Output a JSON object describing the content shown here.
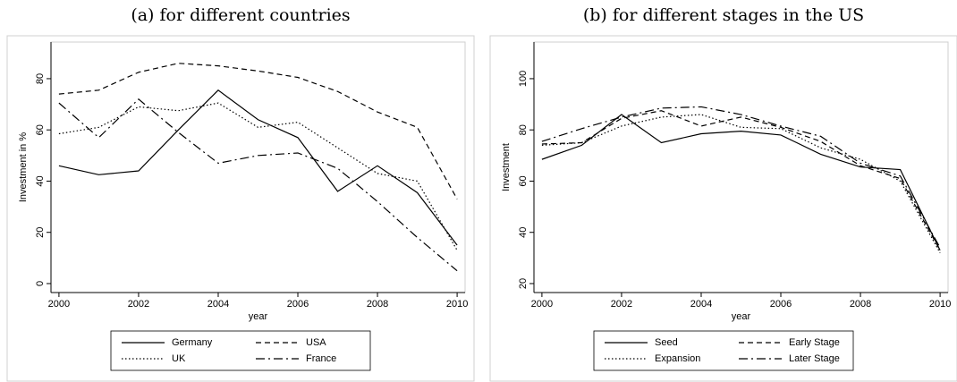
{
  "chart_data": [
    {
      "type": "line",
      "title": "(a) for different countries",
      "x_label": "year",
      "y_label": "Investment in %",
      "x": [
        2000,
        2001,
        2002,
        2003,
        2004,
        2005,
        2006,
        2007,
        2008,
        2009,
        2010
      ],
      "xlim": [
        1999.8,
        2010.2
      ],
      "xticks": [
        2000,
        2002,
        2004,
        2006,
        2008,
        2010
      ],
      "ylim": [
        -3.5,
        94.3
      ],
      "yticks": [
        0,
        20,
        40,
        60,
        80
      ],
      "legend": "bottom",
      "grid": false,
      "series": [
        {
          "name": "Germany",
          "color": "#000000",
          "dash": "solid",
          "values": [
            46,
            42.5,
            44,
            60,
            75.5,
            64,
            57,
            36,
            46,
            35.5,
            15
          ]
        },
        {
          "name": "USA",
          "color": "#000000",
          "dash": "dashed",
          "values": [
            74,
            75.5,
            82.5,
            86,
            85,
            83,
            80.5,
            75,
            67,
            61,
            33
          ]
        },
        {
          "name": "UK",
          "color": "#000000",
          "dash": "dotted",
          "values": [
            58.5,
            61,
            69,
            67.5,
            70.5,
            61,
            63,
            53,
            43,
            40,
            13
          ]
        },
        {
          "name": "France",
          "color": "#000000",
          "dash": "dashdot",
          "values": [
            70.5,
            57,
            72,
            59,
            47,
            50,
            51,
            45,
            32,
            18,
            5
          ]
        }
      ]
    },
    {
      "type": "line",
      "title": "(b) for different stages in the US",
      "x_label": "year",
      "y_label": "Investment",
      "x": [
        2000,
        2001,
        2002,
        2003,
        2004,
        2005,
        2006,
        2007,
        2008,
        2009,
        2010
      ],
      "xlim": [
        1999.8,
        2010.2
      ],
      "xticks": [
        2000,
        2002,
        2004,
        2006,
        2008,
        2010
      ],
      "ylim": [
        16.5,
        114.3
      ],
      "yticks": [
        20,
        40,
        60,
        80,
        100
      ],
      "legend": "bottom",
      "grid": false,
      "series": [
        {
          "name": "Seed",
          "color": "#000000",
          "dash": "solid",
          "values": [
            68.5,
            74,
            86,
            75,
            78.5,
            79.5,
            78,
            70.5,
            65.5,
            64.5,
            33
          ]
        },
        {
          "name": "Early Stage",
          "color": "#000000",
          "dash": "dashed",
          "values": [
            74.5,
            75,
            84.5,
            87.5,
            81.5,
            85,
            81,
            75.5,
            66,
            61,
            33
          ]
        },
        {
          "name": "Expansion",
          "color": "#000000",
          "dash": "dotted",
          "values": [
            74,
            75,
            81.5,
            85,
            86,
            81,
            80.5,
            73,
            68.5,
            60,
            32
          ]
        },
        {
          "name": "Later Stage",
          "color": "#000000",
          "dash": "dashdot",
          "values": [
            75.5,
            80.5,
            85,
            88.5,
            89,
            86,
            81.5,
            77.5,
            67,
            62,
            34
          ]
        }
      ]
    }
  ]
}
